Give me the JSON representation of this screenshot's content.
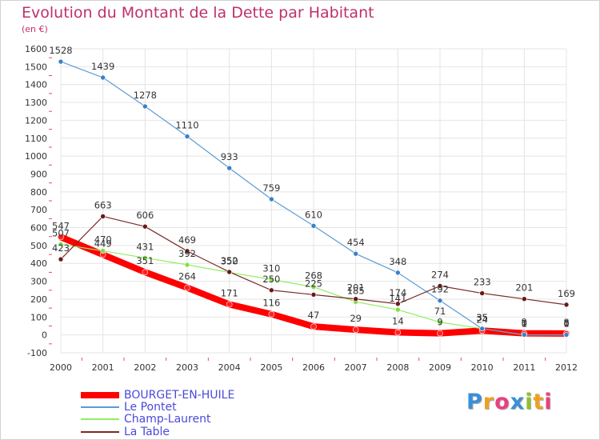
{
  "title": "Evolution du Montant de la Dette par Habitant",
  "subtitle": "(en €)",
  "logo": "Proxiti",
  "chart_data": {
    "type": "line",
    "ylim": [
      -100,
      1600
    ],
    "yticks": [
      "-100",
      "0",
      "100",
      "200",
      "300",
      "400",
      "500",
      "600",
      "700",
      "800",
      "900",
      "1000",
      "1100",
      "1200",
      "1300",
      "1400",
      "1500",
      "1600"
    ],
    "x": [
      "2000",
      "2001",
      "2002",
      "2003",
      "2004",
      "2005",
      "2006",
      "2007",
      "2008",
      "2009",
      "2010",
      "2011",
      "2012"
    ],
    "grid": true,
    "legend_position": "bottom-left",
    "series": [
      {
        "name": "BOURGET-EN-HUILE",
        "color": "#ff0000",
        "values": [
          547,
          449,
          351,
          264,
          171,
          116,
          47,
          29,
          14,
          9,
          24,
          9,
          8
        ],
        "labels": [
          "547",
          "449",
          "351",
          "264",
          "171",
          "116",
          "47",
          "29",
          "14",
          "9",
          "24",
          "9",
          "8"
        ]
      },
      {
        "name": "Le Pontet",
        "color": "#5b9bd5",
        "values": [
          1528,
          1439,
          1278,
          1110,
          933,
          759,
          610,
          454,
          348,
          192,
          35,
          1,
          1
        ],
        "labels": [
          "1528",
          "1439",
          "1278",
          "1110",
          "933",
          "759",
          "610",
          "454",
          "348",
          "192",
          "35",
          "1",
          "1"
        ]
      },
      {
        "name": "Champ-Laurent",
        "color": "#90ee60",
        "values": [
          507,
          470,
          431,
          392,
          350,
          310,
          268,
          185,
          141,
          71,
          35,
          0,
          0
        ],
        "labels": [
          "507",
          "470",
          "431",
          "392",
          "350",
          "310",
          "268",
          "185",
          "141",
          "71",
          "35",
          "0",
          "0"
        ]
      },
      {
        "name": "La Table",
        "color": "#7b2a2a",
        "values": [
          423,
          663,
          606,
          469,
          352,
          250,
          225,
          201,
          174,
          274,
          233,
          201,
          169
        ],
        "labels": [
          "423",
          "663",
          "606",
          "469",
          "352",
          "250",
          "225",
          "201",
          "174",
          "274",
          "233",
          "201",
          "169"
        ]
      }
    ]
  }
}
